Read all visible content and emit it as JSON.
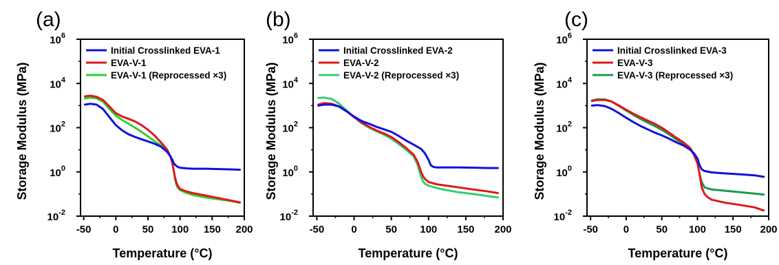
{
  "chart_data": [
    {
      "type": "line",
      "panel_label": "(a)",
      "xlabel": "Temperature (°C)",
      "ylabel": "Storage Modulus (MPa)",
      "xlim": [
        -55,
        200
      ],
      "ylim": [
        0.01,
        1000000
      ],
      "yscale": "log",
      "xticks": [
        -50,
        0,
        50,
        100,
        150,
        200
      ],
      "yticks": [
        {
          "base": "10",
          "exp": "-2",
          "value": 0.01
        },
        {
          "base": "10",
          "exp": "0",
          "value": 1
        },
        {
          "base": "10",
          "exp": "2",
          "value": 100
        },
        {
          "base": "10",
          "exp": "4",
          "value": 10000
        },
        {
          "base": "10",
          "exp": "6",
          "value": 1000000
        }
      ],
      "legend_position": "top-left",
      "grid": false,
      "series": [
        {
          "name": "Initial Crosslinked EVA-1",
          "color": "#1010e0",
          "x": [
            -48,
            -40,
            -30,
            -20,
            -10,
            0,
            10,
            20,
            30,
            40,
            50,
            60,
            70,
            80,
            85,
            88,
            90,
            93,
            95,
            98,
            100,
            110,
            120,
            140,
            160,
            180,
            193
          ],
          "y": [
            1100,
            1200,
            1100,
            700,
            300,
            130,
            75,
            50,
            38,
            30,
            24,
            19,
            14,
            8,
            5,
            3.5,
            2.5,
            2.0,
            1.8,
            1.6,
            1.55,
            1.45,
            1.4,
            1.4,
            1.35,
            1.3,
            1.25
          ]
        },
        {
          "name": "EVA-V-1",
          "color": "#e01818",
          "x": [
            -48,
            -40,
            -30,
            -20,
            -10,
            0,
            10,
            20,
            30,
            40,
            50,
            60,
            70,
            80,
            85,
            88,
            90,
            92,
            94,
            96,
            100,
            110,
            120,
            140,
            160,
            180,
            193
          ],
          "y": [
            2600,
            2800,
            2500,
            1800,
            900,
            450,
            320,
            250,
            190,
            130,
            80,
            45,
            22,
            10,
            5,
            2.5,
            1.2,
            0.6,
            0.35,
            0.25,
            0.17,
            0.13,
            0.11,
            0.085,
            0.065,
            0.05,
            0.042
          ]
        },
        {
          "name": "EVA-V-1 (Reprocessed ×3)",
          "color": "#30d030",
          "x": [
            -48,
            -40,
            -30,
            -20,
            -10,
            0,
            10,
            20,
            30,
            40,
            50,
            60,
            70,
            80,
            85,
            88,
            90,
            92,
            94,
            96,
            100,
            110,
            120,
            140,
            160,
            180,
            193
          ],
          "y": [
            2100,
            2300,
            2100,
            1500,
            700,
            350,
            220,
            150,
            100,
            65,
            40,
            25,
            16,
            9,
            5,
            2.5,
            1.2,
            0.5,
            0.28,
            0.2,
            0.15,
            0.11,
            0.09,
            0.07,
            0.058,
            0.048,
            0.04
          ]
        }
      ],
      "title": "",
      "subtitle": ""
    },
    {
      "type": "line",
      "panel_label": "(b)",
      "xlabel": "Temperature (°C)",
      "ylabel": "Storage Modulus (MPa)",
      "xlim": [
        -55,
        200
      ],
      "ylim": [
        0.01,
        1000000
      ],
      "yscale": "log",
      "xticks": [
        -50,
        0,
        50,
        100,
        150,
        200
      ],
      "yticks": [
        {
          "base": "10",
          "exp": "-2",
          "value": 0.01
        },
        {
          "base": "10",
          "exp": "0",
          "value": 1
        },
        {
          "base": "10",
          "exp": "2",
          "value": 100
        },
        {
          "base": "10",
          "exp": "4",
          "value": 10000
        },
        {
          "base": "10",
          "exp": "6",
          "value": 1000000
        }
      ],
      "legend_position": "top-left",
      "grid": false,
      "series": [
        {
          "name": "Initial Crosslinked EVA-2",
          "color": "#1010e0",
          "x": [
            -48,
            -40,
            -30,
            -20,
            -10,
            0,
            10,
            20,
            30,
            40,
            50,
            60,
            70,
            80,
            90,
            95,
            100,
            103,
            106,
            110,
            120,
            140,
            160,
            180,
            193
          ],
          "y": [
            1000,
            1100,
            1100,
            900,
            550,
            320,
            200,
            150,
            110,
            85,
            65,
            42,
            26,
            17,
            11,
            7,
            3.5,
            2.0,
            1.7,
            1.6,
            1.6,
            1.6,
            1.55,
            1.5,
            1.5
          ]
        },
        {
          "name": "EVA-V-2",
          "color": "#e01818",
          "x": [
            -48,
            -40,
            -30,
            -20,
            -10,
            0,
            10,
            20,
            30,
            40,
            50,
            60,
            70,
            80,
            85,
            88,
            90,
            93,
            96,
            100,
            110,
            120,
            140,
            160,
            180,
            193
          ],
          "y": [
            1100,
            1300,
            1200,
            900,
            550,
            300,
            170,
            110,
            75,
            55,
            38,
            22,
            12,
            6,
            3,
            1.6,
            1.0,
            0.6,
            0.45,
            0.35,
            0.28,
            0.25,
            0.2,
            0.16,
            0.13,
            0.11
          ]
        },
        {
          "name": "EVA-V-2 (Reprocessed ×3)",
          "color": "#30d070",
          "x": [
            -48,
            -40,
            -30,
            -20,
            -10,
            0,
            10,
            20,
            30,
            40,
            50,
            60,
            70,
            80,
            85,
            88,
            90,
            93,
            96,
            100,
            110,
            120,
            140,
            160,
            180,
            193
          ],
          "y": [
            2200,
            2300,
            2000,
            1200,
            600,
            300,
            160,
            100,
            70,
            48,
            32,
            18,
            10,
            5,
            2.2,
            1.0,
            0.6,
            0.35,
            0.28,
            0.24,
            0.19,
            0.16,
            0.12,
            0.1,
            0.08,
            0.07
          ]
        }
      ],
      "title": "",
      "subtitle": ""
    },
    {
      "type": "line",
      "panel_label": "(c)",
      "xlabel": "Temperature (°C)",
      "ylabel": "Storage Modulus (MPa)",
      "xlim": [
        -55,
        200
      ],
      "ylim": [
        0.01,
        1000000
      ],
      "yscale": "log",
      "xticks": [
        -50,
        0,
        50,
        100,
        150,
        200
      ],
      "yticks": [
        {
          "base": "10",
          "exp": "-2",
          "value": 0.01
        },
        {
          "base": "10",
          "exp": "0",
          "value": 1
        },
        {
          "base": "10",
          "exp": "2",
          "value": 100
        },
        {
          "base": "10",
          "exp": "4",
          "value": 10000
        },
        {
          "base": "10",
          "exp": "6",
          "value": 1000000
        }
      ],
      "legend_position": "top-left",
      "grid": false,
      "series": [
        {
          "name": "Initial Crosslinked EVA-3",
          "color": "#1010e0",
          "x": [
            -48,
            -40,
            -30,
            -20,
            -10,
            0,
            10,
            20,
            30,
            40,
            50,
            60,
            70,
            80,
            90,
            95,
            100,
            103,
            106,
            110,
            120,
            140,
            160,
            180,
            193
          ],
          "y": [
            1000,
            1050,
            950,
            700,
            450,
            280,
            180,
            120,
            85,
            60,
            45,
            32,
            22,
            16,
            10,
            7,
            4,
            2.0,
            1.3,
            1.1,
            0.95,
            0.85,
            0.78,
            0.7,
            0.6
          ]
        },
        {
          "name": "EVA-V-3",
          "color": "#e01818",
          "x": [
            -48,
            -40,
            -30,
            -20,
            -10,
            0,
            10,
            20,
            30,
            40,
            50,
            60,
            70,
            80,
            90,
            95,
            100,
            103,
            106,
            110,
            115,
            120,
            140,
            160,
            180,
            193
          ],
          "y": [
            1600,
            1800,
            1800,
            1500,
            1000,
            650,
            430,
            300,
            210,
            150,
            100,
            60,
            36,
            22,
            12,
            6,
            2.5,
            0.8,
            0.2,
            0.1,
            0.07,
            0.055,
            0.04,
            0.032,
            0.025,
            0.018
          ]
        },
        {
          "name": "EVA-V-3 (Reprocessed ×3)",
          "color": "#1a9a4a",
          "x": [
            -48,
            -40,
            -30,
            -20,
            -10,
            0,
            10,
            20,
            30,
            40,
            50,
            60,
            70,
            80,
            90,
            95,
            100,
            103,
            106,
            110,
            120,
            140,
            160,
            180,
            193
          ],
          "y": [
            1700,
            1900,
            1900,
            1500,
            950,
            600,
            380,
            250,
            170,
            120,
            80,
            50,
            30,
            19,
            11,
            6,
            2.5,
            0.8,
            0.35,
            0.2,
            0.16,
            0.14,
            0.12,
            0.105,
            0.095
          ]
        }
      ],
      "title": "",
      "subtitle": ""
    }
  ]
}
